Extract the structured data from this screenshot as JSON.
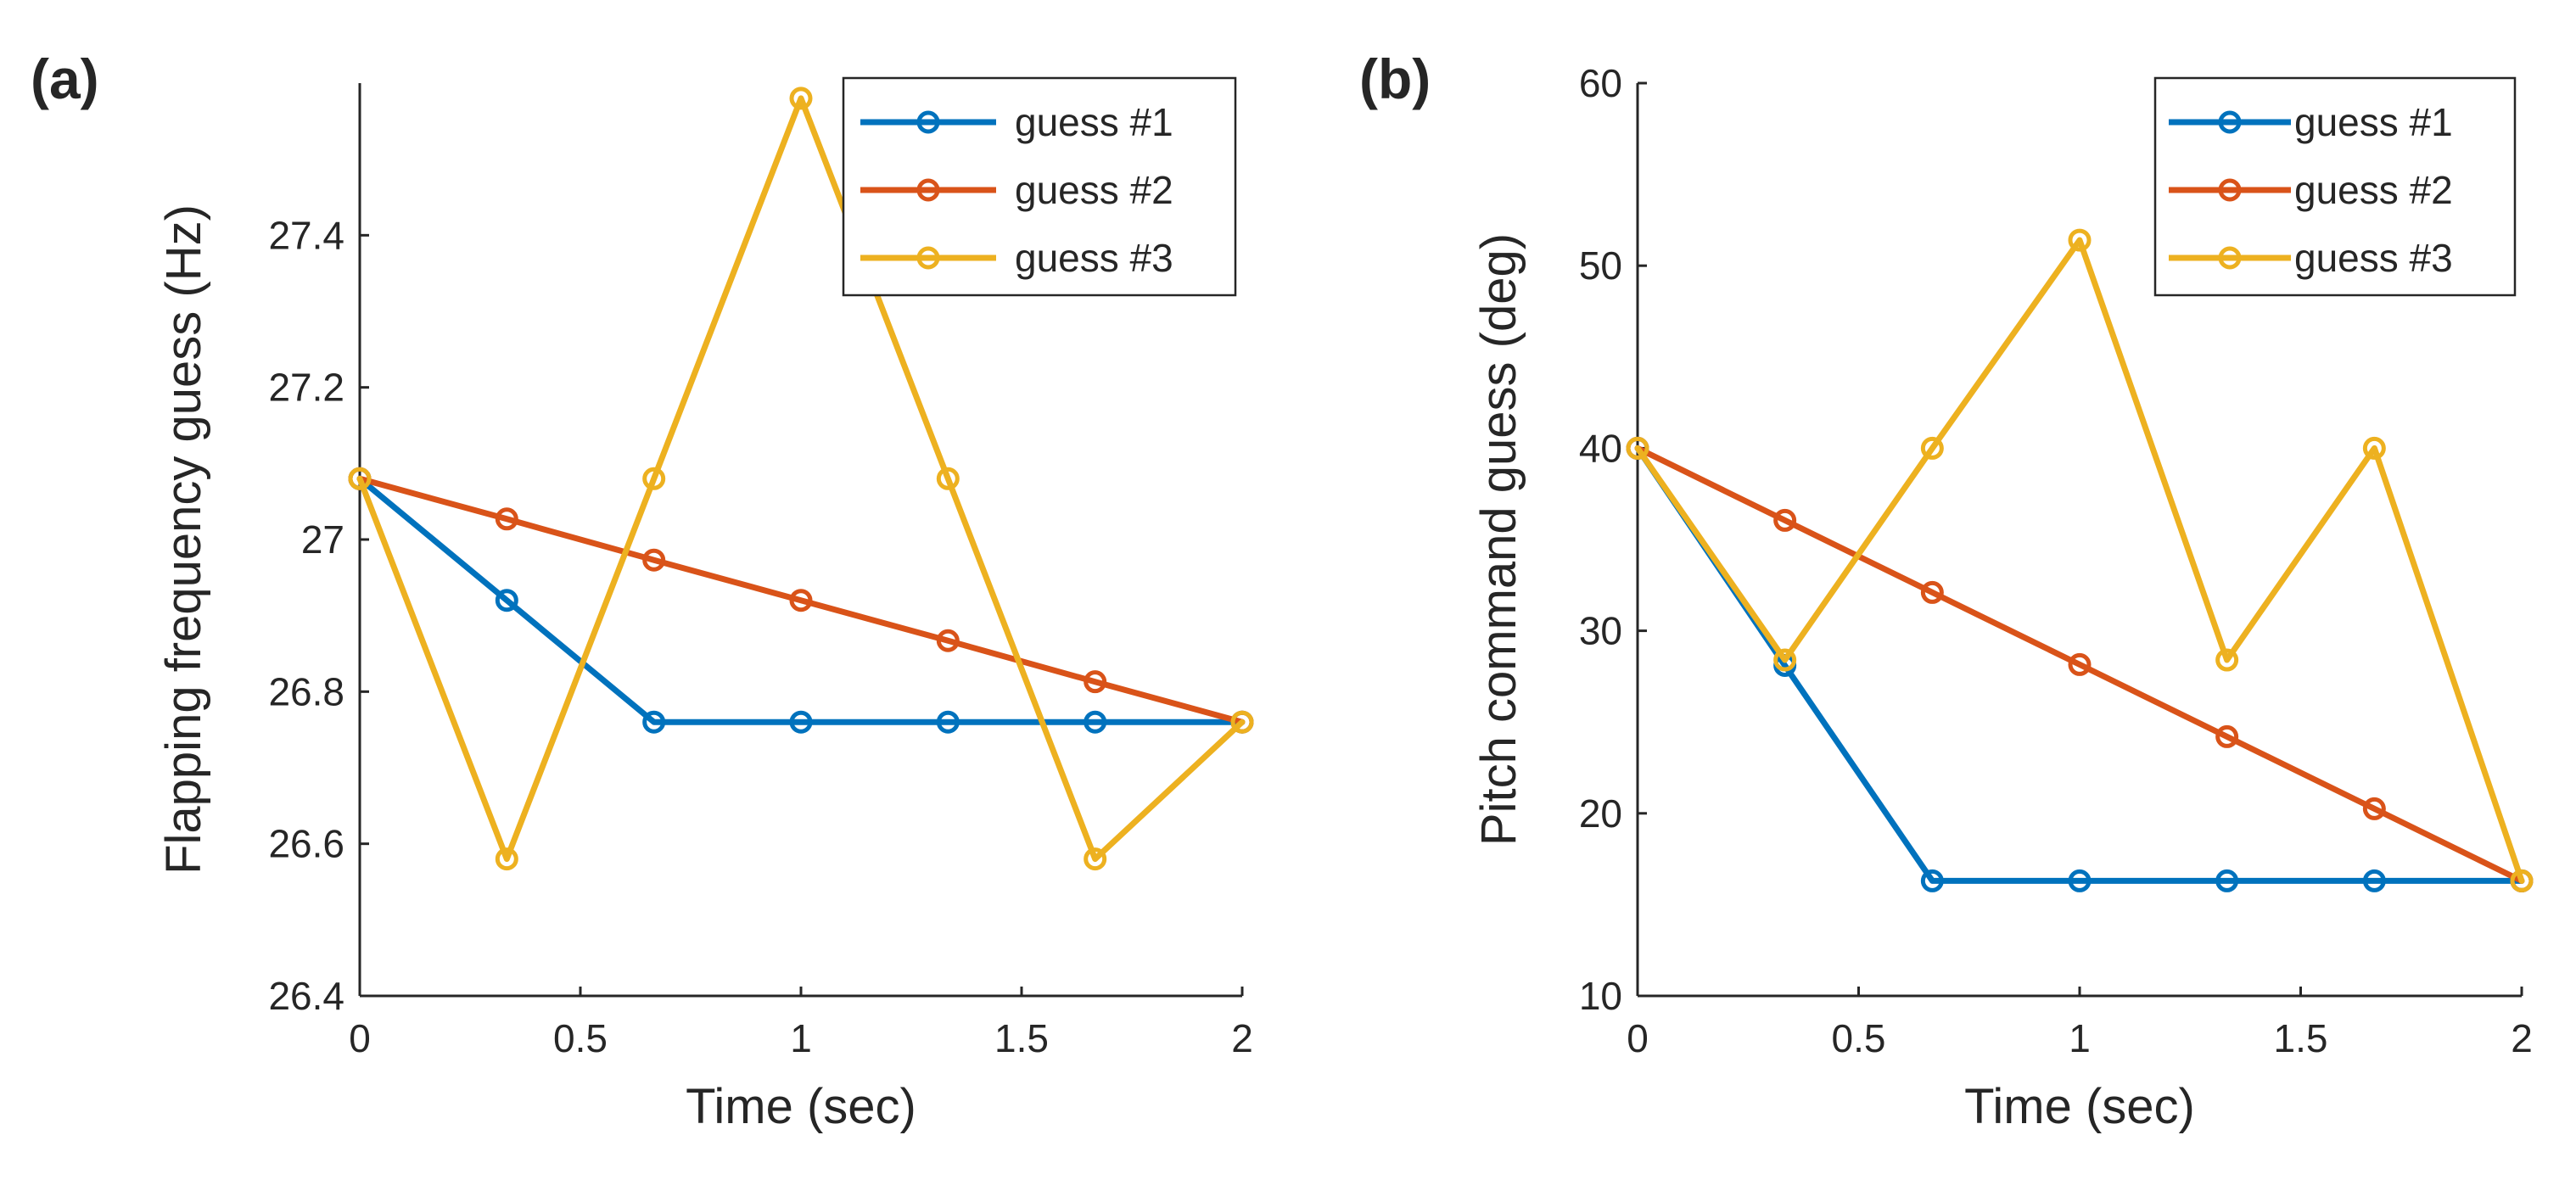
{
  "chart_data": [
    {
      "type": "line",
      "panel_label": "(a)",
      "title": "",
      "xlabel": "Time (sec)",
      "ylabel": "Flapping frequency guess (Hz)",
      "xlim": [
        0,
        2
      ],
      "ylim": [
        26.4,
        27.6
      ],
      "xticks": [
        0,
        0.5,
        1,
        1.5,
        2
      ],
      "xtick_labels": [
        "0",
        "0.5",
        "1",
        "1.5",
        "2"
      ],
      "yticks": [
        26.4,
        26.6,
        26.8,
        27,
        27.2,
        27.4
      ],
      "ytick_labels": [
        "26.4",
        "26.6",
        "26.8",
        "27",
        "27.2",
        "27.4"
      ],
      "grid": false,
      "box": false,
      "legend_position": "top-right",
      "x": [
        0,
        0.3333,
        0.6667,
        1,
        1.3333,
        1.6667,
        2
      ],
      "series": [
        {
          "name": "guess #1",
          "color": "#0072BD",
          "values": [
            27.08,
            26.92,
            26.76,
            26.76,
            26.76,
            26.76,
            26.76
          ]
        },
        {
          "name": "guess #2",
          "color": "#D95319",
          "values": [
            27.08,
            27.027,
            26.973,
            26.92,
            26.867,
            26.813,
            26.76
          ]
        },
        {
          "name": "guess #3",
          "color": "#EDB120",
          "values": [
            27.08,
            26.58,
            27.08,
            27.58,
            27.08,
            26.58,
            26.76
          ]
        }
      ]
    },
    {
      "type": "line",
      "panel_label": "(b)",
      "title": "",
      "xlabel": "Time (sec)",
      "ylabel": "Pitch command guess (deg)",
      "xlim": [
        0,
        2
      ],
      "ylim": [
        10,
        60
      ],
      "xticks": [
        0,
        0.5,
        1,
        1.5,
        2
      ],
      "xtick_labels": [
        "0",
        "0.5",
        "1",
        "1.5",
        "2"
      ],
      "yticks": [
        10,
        20,
        30,
        40,
        50,
        60
      ],
      "ytick_labels": [
        "10",
        "20",
        "30",
        "40",
        "50",
        "60"
      ],
      "grid": false,
      "box": false,
      "legend_position": "top-right",
      "x": [
        0,
        0.3333,
        0.6667,
        1,
        1.3333,
        1.6667,
        2
      ],
      "series": [
        {
          "name": "guess #1",
          "color": "#0072BD",
          "values": [
            40,
            28.1,
            16.3,
            16.3,
            16.3,
            16.3,
            16.3
          ]
        },
        {
          "name": "guess #2",
          "color": "#D95319",
          "values": [
            40,
            36.05,
            32.1,
            28.15,
            24.2,
            20.25,
            16.3
          ]
        },
        {
          "name": "guess #3",
          "color": "#EDB120",
          "values": [
            40,
            28.4,
            40,
            51.4,
            28.4,
            40,
            16.3
          ]
        }
      ]
    }
  ]
}
